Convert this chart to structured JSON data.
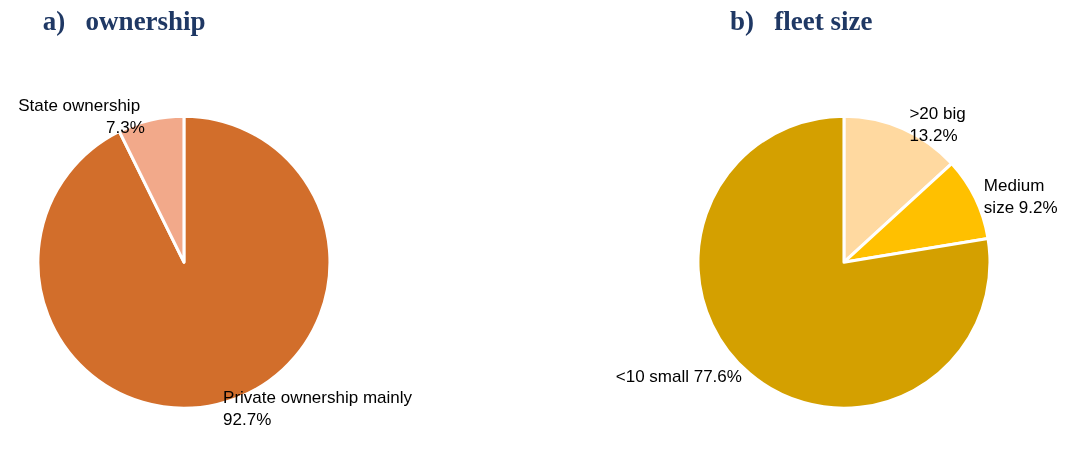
{
  "chart_data": [
    {
      "type": "pie",
      "title": "a)   ownership",
      "categories": [
        "Private ownership mainly",
        "State ownership"
      ],
      "values": [
        92.7,
        7.3
      ],
      "value_labels": [
        "92.7%",
        "7.3%"
      ],
      "colors": [
        "#d26e2b",
        "#f2a98a"
      ]
    },
    {
      "type": "pie",
      "title": "b)   fleet size",
      "categories": [
        ">20 big",
        "Medium size",
        "<10 small"
      ],
      "values": [
        13.2,
        9.2,
        77.6
      ],
      "value_labels": [
        "13.2%",
        "9.2%",
        "77.6%"
      ],
      "colors": [
        "#ffd9a0",
        "#ffc000",
        "#d4a000"
      ]
    }
  ]
}
